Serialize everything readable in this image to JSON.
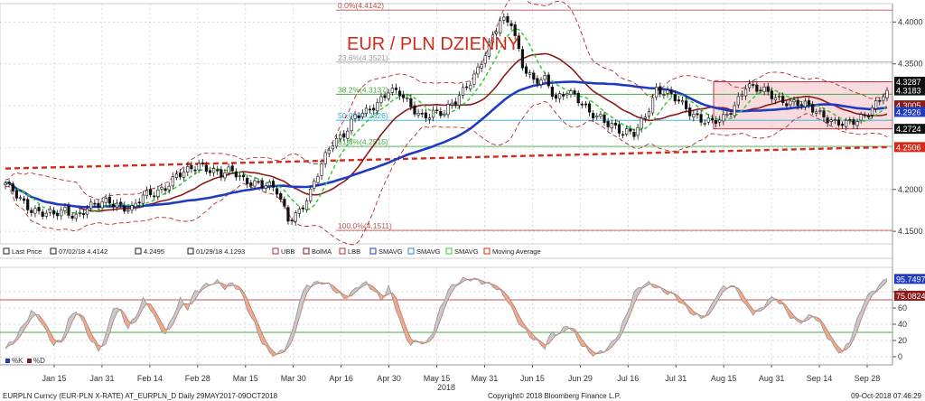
{
  "chart_data": {
    "type": "candlestick",
    "title": "EUR / PLN DZIENNY",
    "main_ylim": [
      4.135,
      4.422
    ],
    "y_ticks": [
      "4.4000",
      "4.3500",
      "4.2000",
      "4.1500"
    ],
    "osc_ylim": [
      -10,
      110
    ],
    "osc_ticks": [
      "80",
      "60",
      "40",
      "20",
      "0"
    ],
    "osc_levels": [
      70,
      30
    ],
    "x_labels": [
      "Jan 15",
      "Jan 31",
      "Feb 14",
      "Feb 28",
      "Mar 15",
      "Mar 30",
      "Apr 16",
      "Apr 30",
      "May 15",
      "May 31",
      "Jun 15",
      "Jun 29",
      "Jul 16",
      "Jul 31",
      "Aug 15",
      "Aug 31",
      "Sep 14",
      "Sep 28"
    ],
    "x_year": "2018",
    "close_anchors": [
      [
        0,
        4.205
      ],
      [
        4,
        4.188
      ],
      [
        7,
        4.178
      ],
      [
        10,
        4.172
      ],
      [
        13,
        4.168
      ],
      [
        16,
        4.175
      ],
      [
        19,
        4.17
      ],
      [
        22,
        4.178
      ],
      [
        25,
        4.18
      ],
      [
        28,
        4.186
      ],
      [
        31,
        4.182
      ],
      [
        34,
        4.176
      ],
      [
        37,
        4.19
      ],
      [
        40,
        4.196
      ],
      [
        43,
        4.205
      ],
      [
        46,
        4.216
      ],
      [
        49,
        4.22
      ],
      [
        52,
        4.23
      ],
      [
        55,
        4.226
      ],
      [
        58,
        4.218
      ],
      [
        61,
        4.22
      ],
      [
        64,
        4.212
      ],
      [
        67,
        4.21
      ],
      [
        70,
        4.205
      ],
      [
        73,
        4.196
      ],
      [
        76,
        4.165
      ],
      [
        79,
        4.176
      ],
      [
        82,
        4.195
      ],
      [
        85,
        4.228
      ],
      [
        88,
        4.258
      ],
      [
        91,
        4.268
      ],
      [
        94,
        4.286
      ],
      [
        97,
        4.29
      ],
      [
        100,
        4.304
      ],
      [
        103,
        4.321
      ],
      [
        106,
        4.314
      ],
      [
        109,
        4.296
      ],
      [
        112,
        4.288
      ],
      [
        115,
        4.294
      ],
      [
        118,
        4.29
      ],
      [
        121,
        4.304
      ],
      [
        124,
        4.325
      ],
      [
        127,
        4.345
      ],
      [
        130,
        4.37
      ],
      [
        133,
        4.4
      ],
      [
        136,
        4.402
      ],
      [
        139,
        4.35
      ],
      [
        142,
        4.327
      ],
      [
        145,
        4.33
      ],
      [
        148,
        4.31
      ],
      [
        151,
        4.32
      ],
      [
        154,
        4.305
      ],
      [
        157,
        4.29
      ],
      [
        160,
        4.288
      ],
      [
        163,
        4.278
      ],
      [
        166,
        4.265
      ],
      [
        169,
        4.266
      ],
      [
        172,
        4.29
      ],
      [
        175,
        4.32
      ],
      [
        178,
        4.312
      ],
      [
        181,
        4.305
      ],
      [
        184,
        4.295
      ],
      [
        187,
        4.284
      ],
      [
        190,
        4.278
      ],
      [
        193,
        4.284
      ],
      [
        196,
        4.302
      ],
      [
        199,
        4.325
      ],
      [
        202,
        4.318
      ],
      [
        205,
        4.315
      ],
      [
        208,
        4.31
      ],
      [
        211,
        4.304
      ],
      [
        214,
        4.3
      ],
      [
        217,
        4.296
      ],
      [
        220,
        4.29
      ],
      [
        223,
        4.28
      ],
      [
        226,
        4.276
      ],
      [
        229,
        4.282
      ],
      [
        232,
        4.295
      ],
      [
        235,
        4.308
      ],
      [
        237,
        4.3183
      ]
    ],
    "fibonacci": [
      {
        "label": "0.0%(4.4142)",
        "value": 4.4142,
        "color": "#c05050"
      },
      {
        "label": "23.6%(4.3521)",
        "value": 4.3521,
        "color": "#999999"
      },
      {
        "label": "38.2%(4.3137)",
        "value": 4.3137,
        "color": "#44aa44"
      },
      {
        "label": "50.0%(4.2826)",
        "value": 4.2826,
        "color": "#33aadd"
      },
      {
        "label": "61.8%(4.2515)",
        "value": 4.2515,
        "color": "#44aa44"
      },
      {
        "label": "100.0%(4.1511)",
        "value": 4.1511,
        "color": "#c05050"
      }
    ],
    "range_box": {
      "y_from": 4.2724,
      "y_to": 4.3287,
      "color": "#f4c8cc",
      "border": "#c03040"
    },
    "price_tags": [
      {
        "label": "4.3287",
        "value": 4.3287,
        "bg": "#111111"
      },
      {
        "label": "4.3183",
        "value": 4.3183,
        "bg": "#111111"
      },
      {
        "label": "4.3005",
        "value": 4.3005,
        "bg": "#8b1a1a"
      },
      {
        "label": "4.2926",
        "value": 4.2926,
        "bg": "#1f3bbf"
      },
      {
        "label": "4.2724",
        "value": 4.2724,
        "bg": "#111111"
      },
      {
        "label": "4.2506",
        "value": 4.2506,
        "bg": "#d42a1a"
      }
    ],
    "osc_tags": [
      {
        "label": "95.7497",
        "value": 95.7497,
        "bg": "#1f3bbf"
      },
      {
        "label": "75.0824",
        "value": 75.0824,
        "bg": "#8b1a1a"
      }
    ],
    "osc_k_anchors": [
      [
        0,
        10
      ],
      [
        3,
        25
      ],
      [
        5,
        40
      ],
      [
        7,
        55
      ],
      [
        9,
        48
      ],
      [
        11,
        30
      ],
      [
        13,
        15
      ],
      [
        15,
        20
      ],
      [
        17,
        45
      ],
      [
        19,
        58
      ],
      [
        21,
        40
      ],
      [
        23,
        20
      ],
      [
        25,
        8
      ],
      [
        27,
        25
      ],
      [
        29,
        62
      ],
      [
        31,
        55
      ],
      [
        33,
        35
      ],
      [
        35,
        50
      ],
      [
        37,
        70
      ],
      [
        39,
        60
      ],
      [
        41,
        40
      ],
      [
        43,
        28
      ],
      [
        45,
        50
      ],
      [
        47,
        70
      ],
      [
        49,
        60
      ],
      [
        51,
        80
      ],
      [
        53,
        86
      ],
      [
        55,
        90
      ],
      [
        57,
        92
      ],
      [
        59,
        85
      ],
      [
        61,
        90
      ],
      [
        63,
        82
      ],
      [
        65,
        60
      ],
      [
        67,
        40
      ],
      [
        69,
        18
      ],
      [
        71,
        5
      ],
      [
        73,
        2
      ],
      [
        75,
        10
      ],
      [
        77,
        28
      ],
      [
        79,
        68
      ],
      [
        81,
        88
      ],
      [
        83,
        90
      ],
      [
        85,
        92
      ],
      [
        87,
        88
      ],
      [
        89,
        80
      ],
      [
        91,
        72
      ],
      [
        93,
        78
      ],
      [
        95,
        88
      ],
      [
        97,
        90
      ],
      [
        99,
        82
      ],
      [
        101,
        70
      ],
      [
        103,
        85
      ],
      [
        105,
        60
      ],
      [
        107,
        30
      ],
      [
        109,
        15
      ],
      [
        111,
        20
      ],
      [
        113,
        15
      ],
      [
        115,
        32
      ],
      [
        117,
        60
      ],
      [
        119,
        82
      ],
      [
        121,
        90
      ],
      [
        123,
        95
      ],
      [
        125,
        96
      ],
      [
        127,
        94
      ],
      [
        129,
        90
      ],
      [
        131,
        88
      ],
      [
        133,
        80
      ],
      [
        135,
        70
      ],
      [
        137,
        50
      ],
      [
        139,
        36
      ],
      [
        141,
        26
      ],
      [
        143,
        18
      ],
      [
        145,
        12
      ],
      [
        147,
        30
      ],
      [
        149,
        28
      ],
      [
        151,
        40
      ],
      [
        153,
        28
      ],
      [
        155,
        15
      ],
      [
        157,
        5
      ],
      [
        159,
        3
      ],
      [
        161,
        8
      ],
      [
        163,
        16
      ],
      [
        165,
        30
      ],
      [
        167,
        52
      ],
      [
        169,
        78
      ],
      [
        171,
        88
      ],
      [
        173,
        90
      ],
      [
        175,
        86
      ],
      [
        177,
        80
      ],
      [
        179,
        78
      ],
      [
        181,
        70
      ],
      [
        183,
        60
      ],
      [
        185,
        52
      ],
      [
        187,
        48
      ],
      [
        189,
        55
      ],
      [
        191,
        75
      ],
      [
        193,
        85
      ],
      [
        195,
        88
      ],
      [
        197,
        80
      ],
      [
        199,
        62
      ],
      [
        201,
        54
      ],
      [
        203,
        58
      ],
      [
        205,
        70
      ],
      [
        207,
        72
      ],
      [
        209,
        62
      ],
      [
        211,
        50
      ],
      [
        213,
        42
      ],
      [
        215,
        46
      ],
      [
        217,
        52
      ],
      [
        219,
        40
      ],
      [
        221,
        25
      ],
      [
        223,
        10
      ],
      [
        225,
        5
      ],
      [
        227,
        20
      ],
      [
        229,
        45
      ],
      [
        231,
        70
      ],
      [
        233,
        80
      ],
      [
        235,
        88
      ],
      [
        237,
        95.75
      ]
    ],
    "legend": [
      {
        "icon": "candle-icon",
        "label": "Last Price",
        "color": "#222222"
      },
      {
        "icon": "high-icon",
        "label": "07/02/18 4.4142",
        "color": "#222222"
      },
      {
        "icon": "close-icon",
        "label": "4.2495",
        "color": "#222222"
      },
      {
        "icon": "low-icon",
        "label": "01/29/18 4.1293",
        "color": "#222222"
      },
      {
        "icon": "line-icon",
        "label": "UBB",
        "color": "#b03030"
      },
      {
        "icon": "line-icon",
        "label": "BolMA",
        "color": "#7a1a1a"
      },
      {
        "icon": "line-icon",
        "label": "LBB",
        "color": "#b03030"
      },
      {
        "icon": "line-icon",
        "label": "SMAVG",
        "color": "#1f3bbf"
      },
      {
        "icon": "line-icon",
        "label": "SMAVG",
        "color": "#2a8ad8"
      },
      {
        "icon": "line-icon",
        "label": "SMAVG",
        "color": "#33cc33"
      },
      {
        "icon": "line-icon",
        "label": "Moving Average",
        "color": "#d42a1a"
      }
    ],
    "osc_legend": [
      {
        "label": "%K",
        "color": "#1f3bbf"
      },
      {
        "label": "%D",
        "color": "#8b1a1a"
      }
    ]
  },
  "footer": {
    "left": "EURPLN Curncy (EUR-PLN X-RATE) AT_EURPLN_D  Daily 29MAY2017-09OCT2018",
    "center": "Copyright© 2018 Bloomberg Finance L.P.",
    "right": "09-Oct-2018 07:46:29"
  },
  "colors": {
    "title": "#d42a1a",
    "candle_up": "#ffffff",
    "candle_down": "#111111",
    "ma_blue": "#1f3bbf",
    "ma_dark_red": "#8b1a1a",
    "bollinger": "#b03030",
    "ma_green": "#33cc33",
    "ma_long_red": "#d42a1a",
    "osc_line": "#999999",
    "osc_up_fill": "#c8c8cc",
    "osc_down_fill": "#f0a888"
  }
}
